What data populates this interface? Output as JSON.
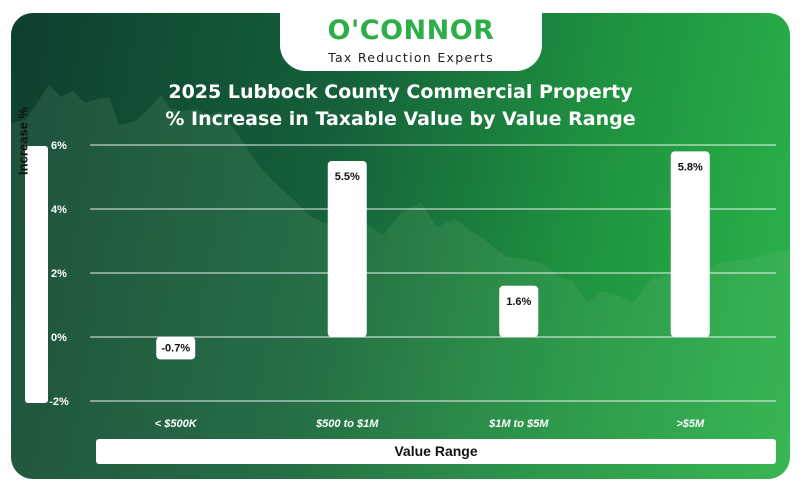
{
  "logo": {
    "name": "O'CONNOR",
    "tagline": "Tax Reduction Experts"
  },
  "colors": {
    "bar": "#ffffff",
    "grid": "#ffffff",
    "background_start": "#0e3f2e",
    "background_end": "#2bb54b",
    "logo_green": "#2cae49"
  },
  "chart_data": {
    "type": "bar",
    "title": "2025 Lubbock County Commercial Property",
    "subtitle": "% Increase in Taxable Value by Value Range",
    "xlabel": "Value Range",
    "ylabel": "Increase %",
    "categories": [
      "< $500K",
      "$500 to $1M",
      "$1M to $5M",
      ">$5M"
    ],
    "values": [
      -0.7,
      5.5,
      1.6,
      5.8
    ],
    "value_labels": [
      "-0.7%",
      "5.5%",
      "1.6%",
      "5.8%"
    ],
    "ylim": [
      -2,
      6
    ],
    "yticks": [
      -2,
      0,
      2,
      4,
      6
    ],
    "ytick_labels": [
      "-2%",
      "0%",
      "2%",
      "4%",
      "6%"
    ],
    "grid": true,
    "legend": "none"
  }
}
